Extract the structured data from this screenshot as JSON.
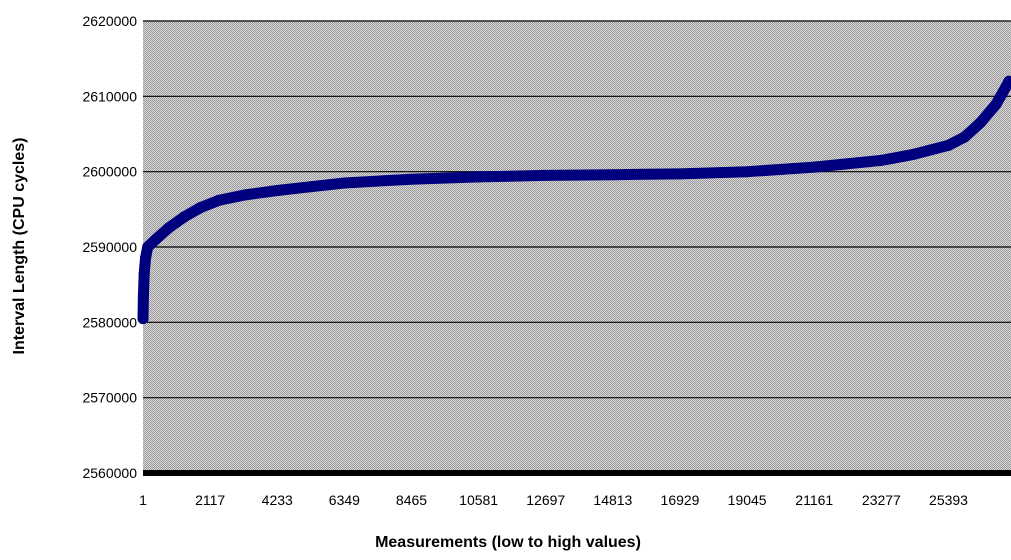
{
  "chart_data": {
    "type": "line",
    "title": "",
    "xlabel": "Measurements (low to high values)",
    "ylabel": "Interval Length (CPU cycles)",
    "x_tick_labels": [
      "1",
      "2117",
      "4233",
      "6349",
      "8465",
      "10581",
      "12697",
      "14813",
      "16929",
      "19045",
      "21161",
      "23277",
      "25393"
    ],
    "x_tick_values": [
      1,
      2117,
      4233,
      6349,
      8465,
      10581,
      12697,
      14813,
      16929,
      19045,
      21161,
      23277,
      25393
    ],
    "xlim": [
      1,
      27300
    ],
    "ylim": [
      2560000,
      2620000
    ],
    "y_tick_labels": [
      "2620000",
      "2610000",
      "2600000",
      "2590000",
      "2580000",
      "2570000",
      "2560000"
    ],
    "y_tick_values": [
      2620000,
      2610000,
      2600000,
      2590000,
      2580000,
      2570000,
      2560000
    ],
    "grid": true,
    "legend": "none",
    "plot_background": "#c0c0c0",
    "line_color": "#00007f",
    "series": [
      {
        "values": [
          {
            "x": 1,
            "y": 2580500
          },
          {
            "x": 15,
            "y": 2583500
          },
          {
            "x": 40,
            "y": 2586500
          },
          {
            "x": 80,
            "y": 2588500
          },
          {
            "x": 150,
            "y": 2590000
          },
          {
            "x": 400,
            "y": 2591000
          },
          {
            "x": 800,
            "y": 2592500
          },
          {
            "x": 1300,
            "y": 2594000
          },
          {
            "x": 1800,
            "y": 2595200
          },
          {
            "x": 2400,
            "y": 2596200
          },
          {
            "x": 3200,
            "y": 2596900
          },
          {
            "x": 4233,
            "y": 2597500
          },
          {
            "x": 5300,
            "y": 2598000
          },
          {
            "x": 6349,
            "y": 2598500
          },
          {
            "x": 8465,
            "y": 2599000
          },
          {
            "x": 10581,
            "y": 2599300
          },
          {
            "x": 12697,
            "y": 2599500
          },
          {
            "x": 14813,
            "y": 2599600
          },
          {
            "x": 16929,
            "y": 2599700
          },
          {
            "x": 19045,
            "y": 2600000
          },
          {
            "x": 21161,
            "y": 2600600
          },
          {
            "x": 23277,
            "y": 2601500
          },
          {
            "x": 24300,
            "y": 2602300
          },
          {
            "x": 25393,
            "y": 2603500
          },
          {
            "x": 25900,
            "y": 2604600
          },
          {
            "x": 26400,
            "y": 2606500
          },
          {
            "x": 26900,
            "y": 2609000
          },
          {
            "x": 27300,
            "y": 2612000
          }
        ]
      }
    ]
  }
}
